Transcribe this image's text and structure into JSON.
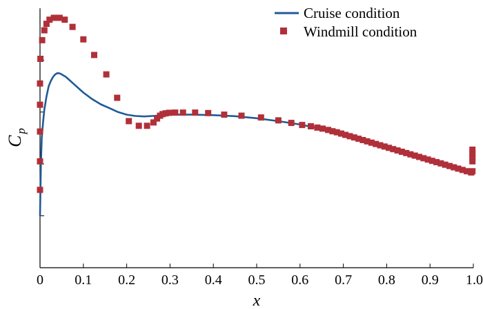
{
  "chart_data": {
    "type": "line",
    "xlabel": "x",
    "ylabel": {
      "main": "C",
      "sub": "p"
    },
    "xlim": [
      0,
      1.0
    ],
    "ylim": [
      0,
      1
    ],
    "xticks": [
      "0",
      "0.1",
      "0.2",
      "0.3",
      "0.4",
      "0.5",
      "0.6",
      "0.7",
      "0.8",
      "0.9",
      "1.0"
    ],
    "yticks": [
      0.2,
      0.4,
      0.6,
      0.8
    ],
    "grid": false,
    "legend": "top-right",
    "series": [
      {
        "name": "Cruise condition",
        "type": "line",
        "color": "#1f5a96",
        "x": [
          0.0,
          0.002,
          0.004,
          0.007,
          0.01,
          0.015,
          0.02,
          0.025,
          0.03,
          0.035,
          0.04,
          0.045,
          0.05,
          0.06,
          0.07,
          0.08,
          0.09,
          0.1,
          0.12,
          0.14,
          0.16,
          0.18,
          0.2,
          0.22,
          0.24,
          0.26,
          0.28,
          0.3,
          0.35,
          0.4,
          0.45,
          0.5,
          0.55,
          0.6,
          0.65,
          0.7,
          0.75,
          0.8,
          0.85,
          0.9,
          0.95,
          1.0
        ],
        "y": [
          0.2,
          0.4,
          0.5,
          0.56,
          0.61,
          0.66,
          0.7,
          0.72,
          0.735,
          0.745,
          0.75,
          0.749,
          0.745,
          0.735,
          0.72,
          0.705,
          0.69,
          0.675,
          0.65,
          0.63,
          0.615,
          0.6,
          0.59,
          0.585,
          0.583,
          0.585,
          0.587,
          0.59,
          0.59,
          0.588,
          0.584,
          0.576,
          0.565,
          0.552,
          0.535,
          0.512,
          0.49,
          0.465,
          0.44,
          0.415,
          0.39,
          0.365
        ]
      },
      {
        "name": "Windmill condition",
        "type": "scatter",
        "color": "#b0303a",
        "x": [
          0.0,
          0.0,
          0.0,
          0.0,
          0.0,
          0.001,
          0.005,
          0.01,
          0.015,
          0.022,
          0.032,
          0.045,
          0.057,
          0.075,
          0.1,
          0.125,
          0.153,
          0.178,
          0.205,
          0.228,
          0.247,
          0.262,
          0.27,
          0.277,
          0.283,
          0.29,
          0.298,
          0.312,
          0.33,
          0.358,
          0.388,
          0.425,
          0.465,
          0.51,
          0.55,
          0.58,
          0.605,
          0.625,
          0.64,
          0.652,
          0.665,
          0.675,
          0.685,
          0.695,
          0.705,
          0.715,
          0.725,
          0.735,
          0.745,
          0.755,
          0.765,
          0.775,
          0.785,
          0.795,
          0.805,
          0.815,
          0.825,
          0.835,
          0.845,
          0.855,
          0.865,
          0.875,
          0.885,
          0.895,
          0.905,
          0.915,
          0.925,
          0.935,
          0.945,
          0.955,
          0.965,
          0.975,
          0.985,
          0.995,
          0.998,
          0.998,
          0.998,
          0.998,
          0.998
        ],
        "y": [
          0.3,
          0.41,
          0.525,
          0.628,
          0.71,
          0.805,
          0.877,
          0.915,
          0.94,
          0.956,
          0.963,
          0.963,
          0.956,
          0.928,
          0.88,
          0.82,
          0.745,
          0.655,
          0.565,
          0.547,
          0.547,
          0.56,
          0.575,
          0.586,
          0.592,
          0.595,
          0.597,
          0.598,
          0.598,
          0.598,
          0.596,
          0.59,
          0.586,
          0.579,
          0.568,
          0.558,
          0.55,
          0.545,
          0.54,
          0.536,
          0.531,
          0.526,
          0.522,
          0.517,
          0.512,
          0.507,
          0.502,
          0.497,
          0.492,
          0.487,
          0.482,
          0.477,
          0.472,
          0.467,
          0.462,
          0.457,
          0.452,
          0.447,
          0.442,
          0.437,
          0.432,
          0.427,
          0.422,
          0.417,
          0.412,
          0.407,
          0.402,
          0.397,
          0.392,
          0.387,
          0.382,
          0.377,
          0.372,
          0.367,
          0.372,
          0.41,
          0.425,
          0.44,
          0.455
        ]
      }
    ]
  }
}
